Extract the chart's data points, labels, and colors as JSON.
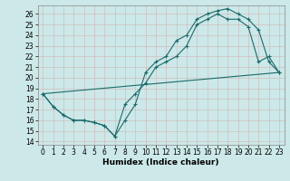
{
  "title": "",
  "xlabel": "Humidex (Indice chaleur)",
  "xlim": [
    -0.5,
    23.5
  ],
  "ylim": [
    13.7,
    26.8
  ],
  "yticks": [
    14,
    15,
    16,
    17,
    18,
    19,
    20,
    21,
    22,
    23,
    24,
    25,
    26
  ],
  "xticks": [
    0,
    1,
    2,
    3,
    4,
    5,
    6,
    7,
    8,
    9,
    10,
    11,
    12,
    13,
    14,
    15,
    16,
    17,
    18,
    19,
    20,
    21,
    22,
    23
  ],
  "bg_color": "#cce8e8",
  "line_color": "#1a6b6b",
  "line1_x": [
    0,
    1,
    2,
    3,
    4,
    5,
    6,
    7,
    8,
    9,
    10,
    11,
    12,
    13,
    14,
    15,
    16,
    17,
    18,
    19,
    20,
    21,
    22,
    23
  ],
  "line1_y": [
    18.5,
    17.3,
    16.5,
    16.0,
    16.0,
    15.8,
    15.5,
    14.5,
    16.0,
    17.5,
    20.5,
    21.5,
    22.0,
    23.5,
    24.0,
    25.5,
    26.0,
    26.3,
    26.5,
    26.0,
    25.5,
    24.5,
    21.5,
    20.5
  ],
  "line2_x": [
    0,
    1,
    2,
    3,
    4,
    5,
    6,
    7,
    8,
    9,
    10,
    11,
    12,
    13,
    14,
    15,
    16,
    17,
    18,
    19,
    20,
    21,
    22,
    23
  ],
  "line2_y": [
    18.5,
    17.3,
    16.5,
    16.0,
    16.0,
    15.8,
    15.5,
    14.5,
    17.5,
    18.5,
    19.5,
    21.0,
    21.5,
    22.0,
    23.0,
    25.0,
    25.5,
    26.0,
    25.5,
    25.5,
    24.8,
    21.5,
    22.0,
    20.5
  ],
  "line3_x": [
    0,
    23
  ],
  "line3_y": [
    18.5,
    20.5
  ],
  "markersize": 2.0,
  "linewidth": 0.8,
  "grid_color": "#b8d8d8",
  "label_fontsize": 5.5,
  "xlabel_fontsize": 6.5
}
